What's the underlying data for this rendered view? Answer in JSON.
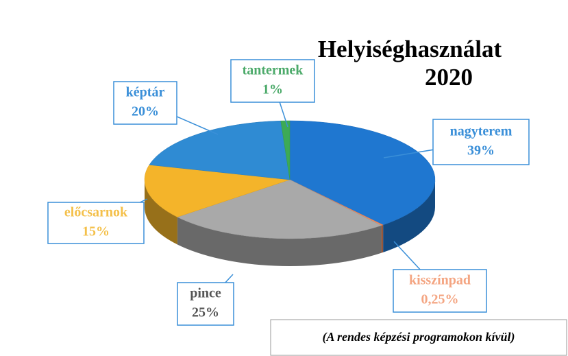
{
  "chart_data": {
    "type": "pie",
    "title": "Helyiséghasználat",
    "subtitle": "2020",
    "annotation": "(A rendes képzési programokon kívül)",
    "categories": [
      "nagyterem",
      "kisszínpad",
      "pince",
      "előcsarnok",
      "képtár",
      "tantermek"
    ],
    "values": [
      39,
      0.25,
      25,
      15,
      20,
      1
    ],
    "value_labels": [
      "39%",
      "0,25%",
      "25%",
      "15%",
      "20%",
      "1%"
    ],
    "colors": [
      "#1f77d0",
      "#f08a5d",
      "#a9a9a9",
      "#f4b42a",
      "#2f8bd3",
      "#3daa55"
    ],
    "label_colors": [
      "#3a8fd8",
      "#f4a582",
      "#555555",
      "#f4c04a",
      "#3a8fd8",
      "#4caa6a"
    ]
  }
}
